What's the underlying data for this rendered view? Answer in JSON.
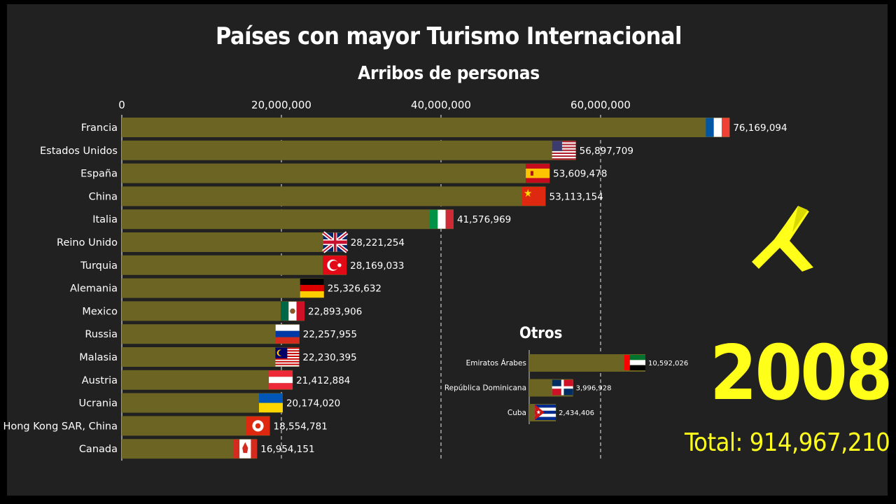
{
  "title": "Países con mayor Turismo Internacional",
  "subtitle": "Arribos de personas",
  "year": "2008",
  "total_label": "Total: 914,967,210",
  "otros_title": "Otros",
  "colors": {
    "bar": "#6b6423",
    "highlight": "#ffff1a",
    "background": "#212121"
  },
  "logo_icon": "airplane-logo-icon",
  "chart_data": [
    {
      "type": "bar",
      "orientation": "horizontal",
      "title": "Países con mayor Turismo Internacional",
      "subtitle": "Arribos de personas",
      "xlim": [
        0,
        80000000
      ],
      "xticks": [
        0,
        20000000,
        40000000,
        60000000
      ],
      "xtick_labels": [
        "0",
        "20,000,000",
        "40,000,000",
        "60,000,000"
      ],
      "grid": true,
      "categories": [
        "Francia",
        "Estados Unidos",
        "España",
        "China",
        "Italia",
        "Reino Unido",
        "Turquia",
        "Alemania",
        "Mexico",
        "Russia",
        "Malasia",
        "Austria",
        "Ucrania",
        "Hong Kong SAR, China",
        "Canada"
      ],
      "values": [
        76169094,
        56897709,
        53609478,
        53113154,
        41576969,
        28221254,
        28169033,
        25326632,
        22893906,
        22257955,
        22230395,
        21412884,
        20174020,
        18554781,
        16954151
      ],
      "value_labels": [
        "76,169,094",
        "56,897,709",
        "53,609,478",
        "53,113,154",
        "41,576,969",
        "28,221,254",
        "28,169,033",
        "25,326,632",
        "22,893,906",
        "22,257,955",
        "22,230,395",
        "21,412,884",
        "20,174,020",
        "18,554,781",
        "16,954,151"
      ],
      "flags": [
        "france-flag-icon",
        "usa-flag-icon",
        "spain-flag-icon",
        "china-flag-icon",
        "italy-flag-icon",
        "uk-flag-icon",
        "turkey-flag-icon",
        "germany-flag-icon",
        "mexico-flag-icon",
        "russia-flag-icon",
        "malaysia-flag-icon",
        "austria-flag-icon",
        "ukraine-flag-icon",
        "hongkong-flag-icon",
        "canada-flag-icon"
      ]
    },
    {
      "type": "bar",
      "orientation": "horizontal",
      "title": "Otros",
      "xlim": [
        0,
        16000000
      ],
      "categories": [
        "Emiratos Árabes",
        "República Dominicana",
        "Cuba"
      ],
      "values": [
        10592026,
        3996928,
        2434406
      ],
      "value_labels": [
        "10,592,026",
        "3,996,928",
        "2,434,406"
      ],
      "flags": [
        "uae-flag-icon",
        "dominican-republic-flag-icon",
        "cuba-flag-icon"
      ]
    }
  ]
}
